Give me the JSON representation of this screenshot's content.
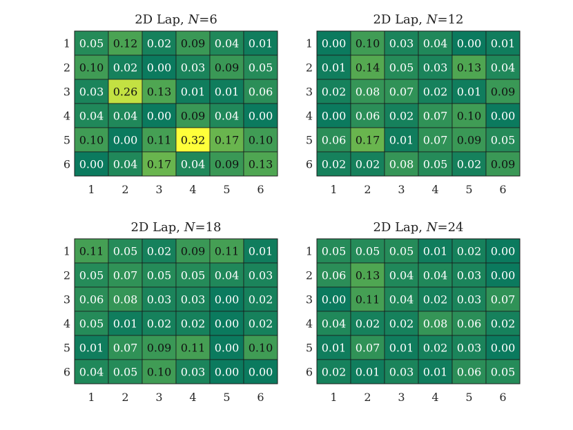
{
  "colors": {
    "low": "#0b7a5e",
    "mid": "#5fb04f",
    "high": "#ffff3a",
    "dark_text": "#111111",
    "light_text": "#ffffff",
    "grid": "#1a1a1a"
  },
  "chart_data": [
    {
      "type": "heatmap",
      "title_prefix": "2D Lap, ",
      "title_var": "N",
      "title_eq": "=6",
      "x_ticks": [
        "1",
        "2",
        "3",
        "4",
        "5",
        "6"
      ],
      "y_ticks": [
        "1",
        "2",
        "3",
        "4",
        "5",
        "6"
      ],
      "color_range": [
        0,
        0.32
      ],
      "values": [
        [
          "0.05",
          "0.12",
          "0.02",
          "0.09",
          "0.04",
          "0.01"
        ],
        [
          "0.10",
          "0.02",
          "0.00",
          "0.03",
          "0.09",
          "0.05"
        ],
        [
          "0.03",
          "0.26",
          "0.13",
          "0.01",
          "0.01",
          "0.06"
        ],
        [
          "0.04",
          "0.04",
          "0.00",
          "0.09",
          "0.04",
          "0.00"
        ],
        [
          "0.10",
          "0.00",
          "0.11",
          "0.32",
          "0.17",
          "0.10"
        ],
        [
          "0.00",
          "0.04",
          "0.17",
          "0.04",
          "0.09",
          "0.13"
        ]
      ]
    },
    {
      "type": "heatmap",
      "title_prefix": "2D Lap, ",
      "title_var": "N",
      "title_eq": "=12",
      "x_ticks": [
        "1",
        "2",
        "3",
        "4",
        "5",
        "6"
      ],
      "y_ticks": [
        "1",
        "2",
        "3",
        "4",
        "5",
        "6"
      ],
      "color_range": [
        0,
        0.32
      ],
      "values": [
        [
          "0.00",
          "0.10",
          "0.03",
          "0.04",
          "0.00",
          "0.01"
        ],
        [
          "0.01",
          "0.14",
          "0.05",
          "0.03",
          "0.13",
          "0.04"
        ],
        [
          "0.02",
          "0.08",
          "0.07",
          "0.02",
          "0.01",
          "0.09"
        ],
        [
          "0.00",
          "0.06",
          "0.02",
          "0.07",
          "0.10",
          "0.00"
        ],
        [
          "0.06",
          "0.17",
          "0.01",
          "0.07",
          "0.09",
          "0.05"
        ],
        [
          "0.02",
          "0.02",
          "0.08",
          "0.05",
          "0.02",
          "0.09"
        ]
      ]
    },
    {
      "type": "heatmap",
      "title_prefix": "2D Lap, ",
      "title_var": "N",
      "title_eq": "=18",
      "x_ticks": [
        "1",
        "2",
        "3",
        "4",
        "5",
        "6"
      ],
      "y_ticks": [
        "1",
        "2",
        "3",
        "4",
        "5",
        "6"
      ],
      "color_range": [
        0,
        0.32
      ],
      "values": [
        [
          "0.11",
          "0.05",
          "0.02",
          "0.09",
          "0.11",
          "0.01"
        ],
        [
          "0.05",
          "0.07",
          "0.05",
          "0.05",
          "0.04",
          "0.03"
        ],
        [
          "0.06",
          "0.08",
          "0.03",
          "0.03",
          "0.00",
          "0.02"
        ],
        [
          "0.05",
          "0.01",
          "0.02",
          "0.02",
          "0.00",
          "0.02"
        ],
        [
          "0.01",
          "0.07",
          "0.09",
          "0.11",
          "0.00",
          "0.10"
        ],
        [
          "0.04",
          "0.05",
          "0.10",
          "0.03",
          "0.00",
          "0.00"
        ]
      ]
    },
    {
      "type": "heatmap",
      "title_prefix": "2D Lap, ",
      "title_var": "N",
      "title_eq": "=24",
      "x_ticks": [
        "1",
        "2",
        "3",
        "4",
        "5",
        "6"
      ],
      "y_ticks": [
        "1",
        "2",
        "3",
        "4",
        "5",
        "6"
      ],
      "color_range": [
        0,
        0.32
      ],
      "values": [
        [
          "0.05",
          "0.05",
          "0.05",
          "0.01",
          "0.02",
          "0.00"
        ],
        [
          "0.06",
          "0.13",
          "0.04",
          "0.04",
          "0.03",
          "0.00"
        ],
        [
          "0.00",
          "0.11",
          "0.04",
          "0.02",
          "0.03",
          "0.07"
        ],
        [
          "0.04",
          "0.02",
          "0.02",
          "0.08",
          "0.06",
          "0.02"
        ],
        [
          "0.01",
          "0.07",
          "0.01",
          "0.02",
          "0.03",
          "0.00"
        ],
        [
          "0.02",
          "0.01",
          "0.03",
          "0.01",
          "0.06",
          "0.05"
        ]
      ]
    }
  ]
}
